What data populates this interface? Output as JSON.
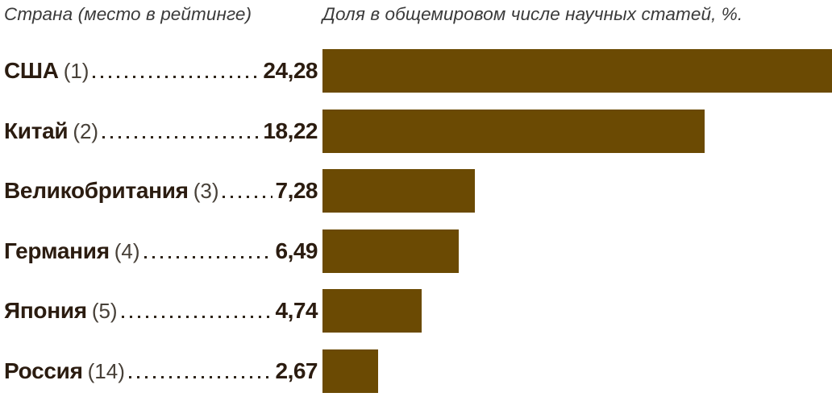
{
  "chart_data": {
    "type": "bar",
    "orientation": "horizontal",
    "title": "",
    "column_header_left": "Страна (место в рейтинге)",
    "column_header_right": "Доля в общемировом числе научных статей, %.",
    "categories": [
      "США",
      "Китай",
      "Великобритания",
      "Германия",
      "Япония",
      "Россия"
    ],
    "ranks": [
      1,
      2,
      3,
      4,
      5,
      14
    ],
    "rank_labels": [
      "(1)",
      "(2)",
      "(3)",
      "(4)",
      "(5)",
      "(14)"
    ],
    "values": [
      24.28,
      18.22,
      7.28,
      6.49,
      4.74,
      2.67
    ],
    "value_labels": [
      "24,28",
      "18,22",
      "7,28",
      "6,49",
      "4,74",
      "2,67"
    ],
    "axis_max": 24.28,
    "xlim": [
      0,
      24.28
    ],
    "grid": false,
    "legend": false,
    "bar_color": "#6B4A03",
    "country_text_color": "#2B1C10",
    "rank_text_color": "#474038",
    "header_text_color": "#3A3A3A",
    "leader_dot_color": "#2E2419",
    "background_color": "#FFFFFF"
  }
}
